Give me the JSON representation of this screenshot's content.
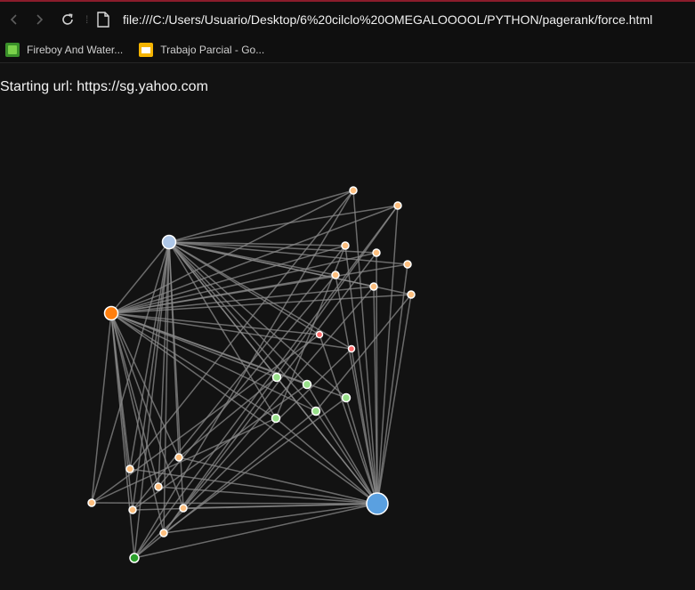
{
  "browser": {
    "url": "file:///C:/Users/Usuario/Desktop/6%20cilclo%20OMEGALOOOOL/PYTHON/pagerank/force.html",
    "bookmarks": [
      {
        "label": "Fireboy And Water...",
        "icon": "game-icon"
      },
      {
        "label": "Trabajo Parcial - Go...",
        "icon": "slides-icon"
      }
    ]
  },
  "page": {
    "starting_url_text": "Starting url: https://sg.yahoo.com"
  },
  "colors": {
    "link": "#8a8a8a",
    "peach": "#fdbf7f",
    "orange": "#ff7f0e",
    "light_blue": "#aec7e8",
    "blue": "#5aa0e0",
    "light_green": "#98df8a",
    "green": "#2ca02c",
    "red": "#ff6b6b"
  }
}
